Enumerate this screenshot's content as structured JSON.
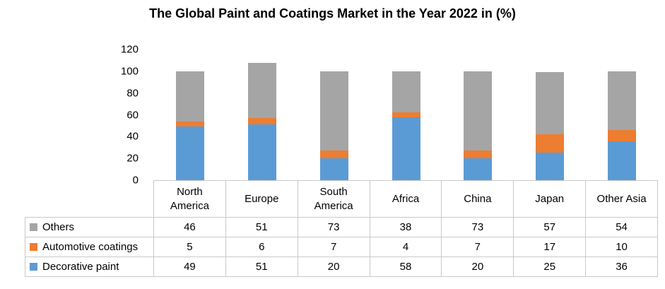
{
  "title": "The Global Paint and Coatings Market in the Year 2022 in (%)",
  "colors": {
    "decorative_paint": "#5B9BD5",
    "automotive_coatings": "#ED7D31",
    "others": "#A5A5A5",
    "table_border": "#c9c9c9"
  },
  "y_axis": {
    "ticks": [
      "120",
      "100",
      "80",
      "60",
      "40",
      "20",
      "0"
    ]
  },
  "chart_data": {
    "type": "bar",
    "stacked": true,
    "title": "The Global Paint and Coatings Market in the Year 2022 in (%)",
    "xlabel": "",
    "ylabel": "",
    "ylim": [
      0,
      120
    ],
    "grid": false,
    "legend_position": "table-left",
    "categories": [
      "North America",
      "Europe",
      "South America",
      "Africa",
      "China",
      "Japan",
      "Other Asia"
    ],
    "series": [
      {
        "name": "Decorative paint",
        "color": "#5B9BD5",
        "values": [
          49,
          51,
          20,
          58,
          20,
          25,
          36
        ]
      },
      {
        "name": "Automotive coatings",
        "color": "#ED7D31",
        "values": [
          5,
          6,
          7,
          4,
          7,
          17,
          10
        ]
      },
      {
        "name": "Others",
        "color": "#A5A5A5",
        "values": [
          46,
          51,
          73,
          38,
          73,
          57,
          54
        ]
      }
    ]
  },
  "table": {
    "rows": [
      {
        "label": "Others",
        "color": "#A5A5A5",
        "values": [
          46,
          51,
          73,
          38,
          73,
          57,
          54
        ]
      },
      {
        "label": "Automotive coatings",
        "color": "#ED7D31",
        "values": [
          5,
          6,
          7,
          4,
          7,
          17,
          10
        ]
      },
      {
        "label": "Decorative paint",
        "color": "#5B9BD5",
        "values": [
          49,
          51,
          20,
          58,
          20,
          25,
          36
        ]
      }
    ]
  }
}
